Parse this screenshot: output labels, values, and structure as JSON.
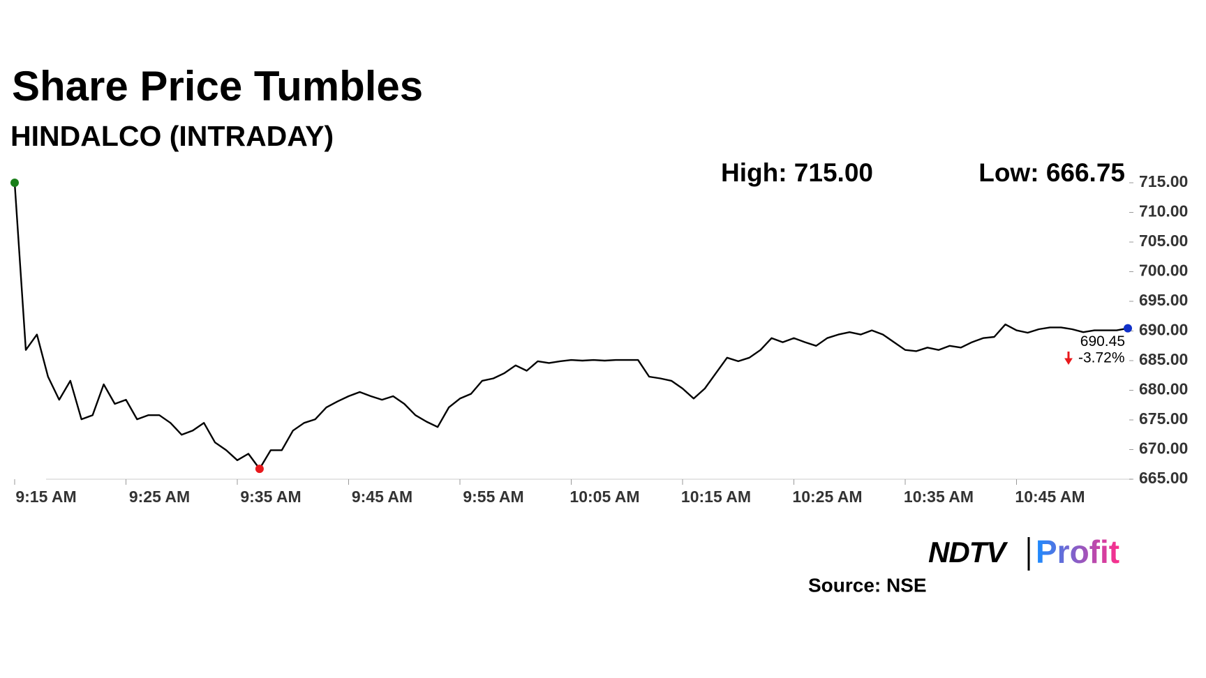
{
  "chart_data": {
    "type": "line",
    "title": "Share Price Tumbles",
    "subtitle": "HINDALCO (INTRADAY)",
    "high_label": "High: 715.00",
    "low_label": "Low: 666.75",
    "change_label": "-3.72%",
    "source": "Source: NSE",
    "logo": {
      "left": "NDTV",
      "right": "Profit"
    },
    "color": "#000000",
    "start_color": "#1a7f1a",
    "low_color": "#e8191c",
    "end_color": "#1030c8",
    "change_color": "#e8191c",
    "x": [
      "9:15 AM",
      "9:16 AM",
      "9:17 AM",
      "9:18 AM",
      "9:19 AM",
      "9:20 AM",
      "9:21 AM",
      "9:22 AM",
      "9:23 AM",
      "9:24 AM",
      "9:25 AM",
      "9:26 AM",
      "9:27 AM",
      "9:28 AM",
      "9:29 AM",
      "9:30 AM",
      "9:31 AM",
      "9:32 AM",
      "9:33 AM",
      "9:34 AM",
      "9:35 AM",
      "9:36 AM",
      "9:37 AM",
      "9:38 AM",
      "9:39 AM",
      "9:40 AM",
      "9:41 AM",
      "9:42 AM",
      "9:43 AM",
      "9:44 AM",
      "9:45 AM",
      "9:46 AM",
      "9:47 AM",
      "9:48 AM",
      "9:49 AM",
      "9:50 AM",
      "9:51 AM",
      "9:52 AM",
      "9:53 AM",
      "9:54 AM",
      "9:55 AM",
      "9:56 AM",
      "9:57 AM",
      "9:58 AM",
      "9:59 AM",
      "10:00 AM",
      "10:01 AM",
      "10:02 AM",
      "10:03 AM",
      "10:04 AM",
      "10:05 AM",
      "10:06 AM",
      "10:07 AM",
      "10:08 AM",
      "10:09 AM",
      "10:10 AM",
      "10:11 AM",
      "10:12 AM",
      "10:13 AM",
      "10:14 AM",
      "10:15 AM",
      "10:16 AM",
      "10:17 AM",
      "10:18 AM",
      "10:19 AM",
      "10:20 AM",
      "10:21 AM",
      "10:22 AM",
      "10:23 AM",
      "10:24 AM",
      "10:25 AM",
      "10:26 AM",
      "10:27 AM",
      "10:28 AM",
      "10:29 AM",
      "10:30 AM",
      "10:31 AM",
      "10:32 AM",
      "10:33 AM",
      "10:34 AM",
      "10:35 AM",
      "10:36 AM",
      "10:37 AM",
      "10:38 AM",
      "10:39 AM",
      "10:40 AM",
      "10:41 AM",
      "10:42 AM",
      "10:43 AM",
      "10:44 AM",
      "10:45 AM",
      "10:46 AM",
      "10:47 AM",
      "10:48 AM",
      "10:49 AM",
      "10:50 AM",
      "10:51 AM",
      "10:52 AM",
      "10:53 AM",
      "10:54 AM",
      "10:55 AM"
    ],
    "values": [
      715,
      686.8,
      689.4,
      682.3,
      678.4,
      681.6,
      675.1,
      675.8,
      681,
      677.7,
      678.4,
      675.1,
      675.8,
      675.8,
      674.5,
      672.5,
      673.2,
      674.5,
      671.2,
      669.9,
      668.2,
      669.3,
      666.75,
      669.9,
      669.9,
      673.2,
      674.5,
      675.1,
      677.1,
      678.1,
      679,
      679.7,
      679,
      678.4,
      679,
      677.7,
      675.8,
      674.7,
      673.8,
      677.1,
      678.6,
      679.4,
      681.6,
      682,
      682.9,
      684.2,
      683.3,
      684.9,
      684.6,
      684.9,
      685.1,
      685,
      685.1,
      685,
      685.1,
      685.1,
      685.1,
      682.3,
      682,
      681.6,
      680.3,
      678.6,
      680.3,
      682.9,
      685.5,
      684.9,
      685.5,
      686.8,
      688.8,
      688.1,
      688.8,
      688.1,
      687.5,
      688.8,
      689.4,
      689.8,
      689.4,
      690.1,
      689.4,
      688.1,
      686.8,
      686.6,
      687.2,
      686.8,
      687.5,
      687.2,
      688.1,
      688.8,
      689,
      691.1,
      690.1,
      689.7,
      690.3,
      690.6,
      690.6,
      690.3,
      689.8,
      690.1,
      690.1,
      690.1,
      690.45
    ],
    "xticks": [
      "9:15 AM",
      "9:25 AM",
      "9:35 AM",
      "9:45 AM",
      "9:55 AM",
      "10:05 AM",
      "10:15 AM",
      "10:25 AM",
      "10:35 AM",
      "10:45 AM"
    ],
    "ylim": [
      665,
      715
    ],
    "yticks": [
      {
        "value": 665,
        "label": "665.00"
      },
      {
        "value": 670,
        "label": "670.00"
      },
      {
        "value": 675,
        "label": "675.00"
      },
      {
        "value": 680,
        "label": "680.00"
      },
      {
        "value": 685,
        "label": "685.00"
      },
      {
        "value": 690,
        "label": "690.00"
      },
      {
        "value": 695,
        "label": "695.00"
      },
      {
        "value": 700,
        "label": "700.00"
      },
      {
        "value": 705,
        "label": "705.00"
      },
      {
        "value": 710,
        "label": "710.00"
      },
      {
        "value": 715,
        "label": "715.00"
      }
    ],
    "grid": false
  }
}
